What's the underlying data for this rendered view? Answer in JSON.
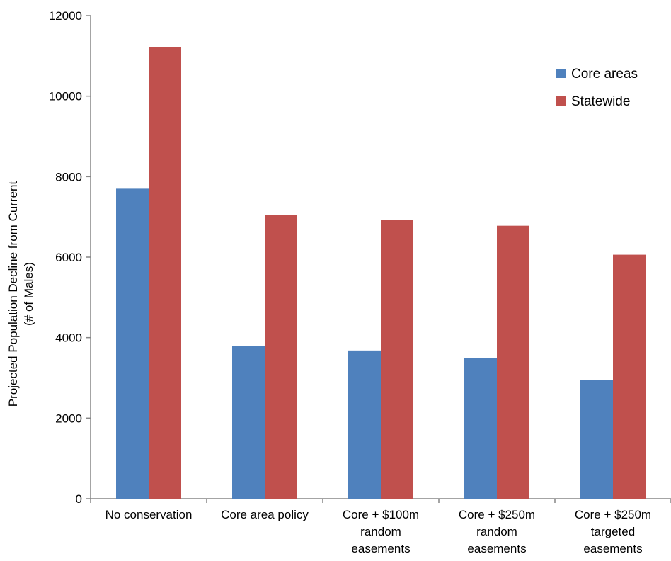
{
  "chart_data": {
    "type": "bar",
    "title": "",
    "xlabel": "",
    "ylabel_lines": [
      "Projected Population Decline from Current",
      "(# of Males)"
    ],
    "ylim": [
      0,
      12000
    ],
    "yticks": [
      0,
      2000,
      4000,
      6000,
      8000,
      10000,
      12000
    ],
    "grid": false,
    "legend_position": "top-right",
    "categories": [
      [
        "No conservation"
      ],
      [
        "Core area policy"
      ],
      [
        "Core + $100m",
        "random",
        "easements"
      ],
      [
        "Core + $250m",
        "random",
        "easements"
      ],
      [
        "Core + $250m",
        "targeted",
        "easements"
      ]
    ],
    "series": [
      {
        "name": "Core areas",
        "color": "#4f81bd",
        "values": [
          7700,
          3800,
          3680,
          3500,
          2950
        ]
      },
      {
        "name": "Statewide",
        "color": "#c0504d",
        "values": [
          11220,
          7050,
          6920,
          6780,
          6060
        ]
      }
    ]
  }
}
